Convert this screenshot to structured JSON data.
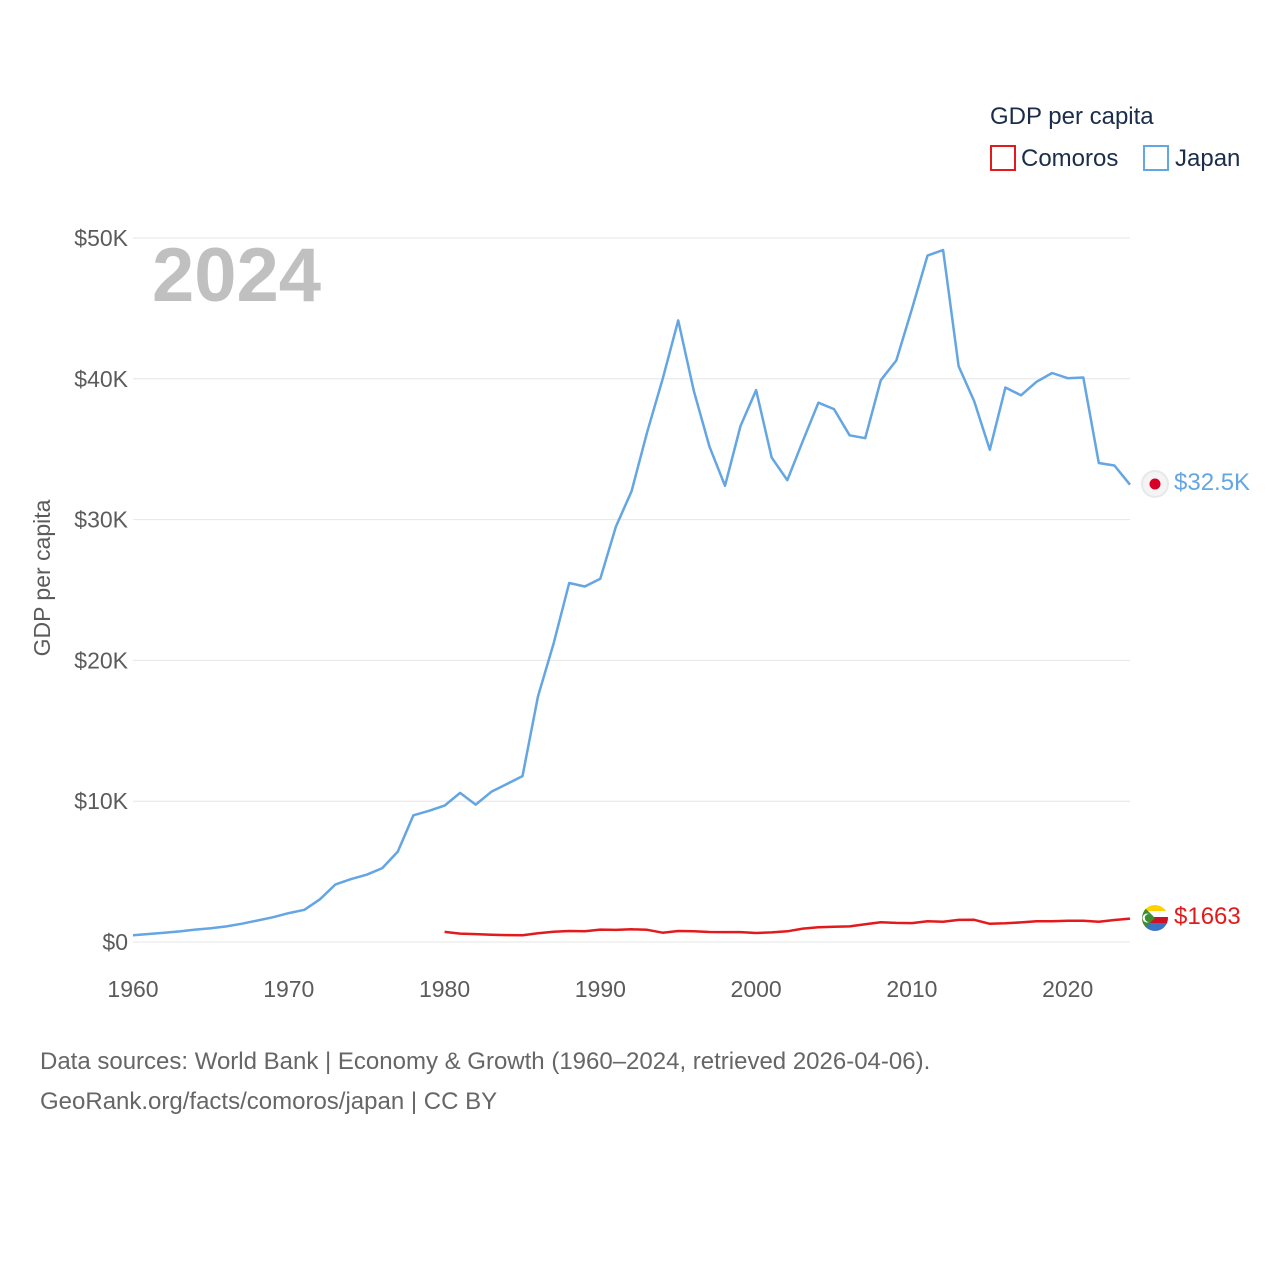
{
  "colors": {
    "comoros": "#e31a1c",
    "japan": "#64a5e3",
    "grid": "#e6e6e6",
    "tick": "#5b5b5b",
    "legend_text": "#1b2d4a",
    "watermark": "#c0c0c0"
  },
  "source": {
    "line1": "Data sources: World Bank | Economy & Growth (1960–2024, retrieved 2026-04-06).",
    "line2": "GeoRank.org/facts/comoros/japan | CC BY"
  },
  "chart_data": {
    "type": "line",
    "title": "",
    "year_watermark": "2024",
    "xlabel": "",
    "ylabel": "GDP per capita",
    "xlim": [
      1960,
      2024
    ],
    "ylim": [
      0,
      50000
    ],
    "x_ticks": [
      1960,
      1970,
      1980,
      1990,
      2000,
      2010,
      2020
    ],
    "x_tick_labels": [
      "1960",
      "1970",
      "1980",
      "1990",
      "2000",
      "2010",
      "2020"
    ],
    "y_ticks": [
      0,
      10000,
      20000,
      30000,
      40000,
      50000
    ],
    "y_tick_labels": [
      "$0",
      "$10K",
      "$20K",
      "$30K",
      "$40K",
      "$50K"
    ],
    "grid": true,
    "legend": {
      "title": "GDP per capita",
      "position": "top-right",
      "entries": [
        "Comoros",
        "Japan"
      ]
    },
    "series": [
      {
        "name": "Comoros",
        "color_key": "comoros",
        "flag_icon": "comoros-flag-icon",
        "end_label": "$1663",
        "x": [
          1980,
          1981,
          1982,
          1983,
          1984,
          1985,
          1986,
          1987,
          1988,
          1989,
          1990,
          1991,
          1992,
          1993,
          1994,
          1995,
          1996,
          1997,
          1998,
          1999,
          2000,
          2001,
          2002,
          2003,
          2004,
          2005,
          2006,
          2007,
          2008,
          2009,
          2010,
          2011,
          2012,
          2013,
          2014,
          2015,
          2016,
          2017,
          2018,
          2019,
          2020,
          2021,
          2022,
          2023,
          2024
        ],
        "values": [
          720,
          600,
          560,
          520,
          490,
          480,
          620,
          730,
          780,
          760,
          880,
          860,
          900,
          870,
          660,
          780,
          770,
          710,
          700,
          700,
          640,
          680,
          760,
          950,
          1050,
          1080,
          1110,
          1260,
          1400,
          1360,
          1340,
          1470,
          1440,
          1570,
          1580,
          1290,
          1330,
          1390,
          1480,
          1470,
          1510,
          1510,
          1440,
          1560,
          1663
        ]
      },
      {
        "name": "Japan",
        "color_key": "japan",
        "flag_icon": "japan-flag-icon",
        "end_label": "$32.5K",
        "x": [
          1960,
          1961,
          1962,
          1963,
          1964,
          1965,
          1966,
          1967,
          1968,
          1969,
          1970,
          1971,
          1972,
          1973,
          1974,
          1975,
          1976,
          1977,
          1978,
          1979,
          1980,
          1981,
          1982,
          1983,
          1984,
          1985,
          1986,
          1987,
          1988,
          1989,
          1990,
          1991,
          1992,
          1993,
          1994,
          1995,
          1996,
          1997,
          1998,
          1999,
          2000,
          2001,
          2002,
          2003,
          2004,
          2005,
          2006,
          2007,
          2008,
          2009,
          2010,
          2011,
          2012,
          2013,
          2014,
          2015,
          2016,
          2017,
          2018,
          2019,
          2020,
          2021,
          2022,
          2023,
          2024
        ],
        "values": [
          480,
          570,
          660,
          750,
          880,
          970,
          1110,
          1300,
          1530,
          1760,
          2050,
          2290,
          3030,
          4090,
          4470,
          4780,
          5250,
          6420,
          9000,
          9320,
          9690,
          10590,
          9760,
          10670,
          11220,
          11780,
          17450,
          21200,
          25500,
          25250,
          25800,
          29500,
          32000,
          36200,
          40000,
          44150,
          39150,
          35200,
          32400,
          36650,
          39200,
          34400,
          32800,
          35600,
          38300,
          37850,
          35990,
          35780,
          39900,
          41300,
          44950,
          48750,
          49150,
          40900,
          38400,
          34960,
          39380,
          38830,
          39790,
          40410,
          40040,
          40090,
          34020,
          33840,
          32480
        ]
      }
    ]
  }
}
